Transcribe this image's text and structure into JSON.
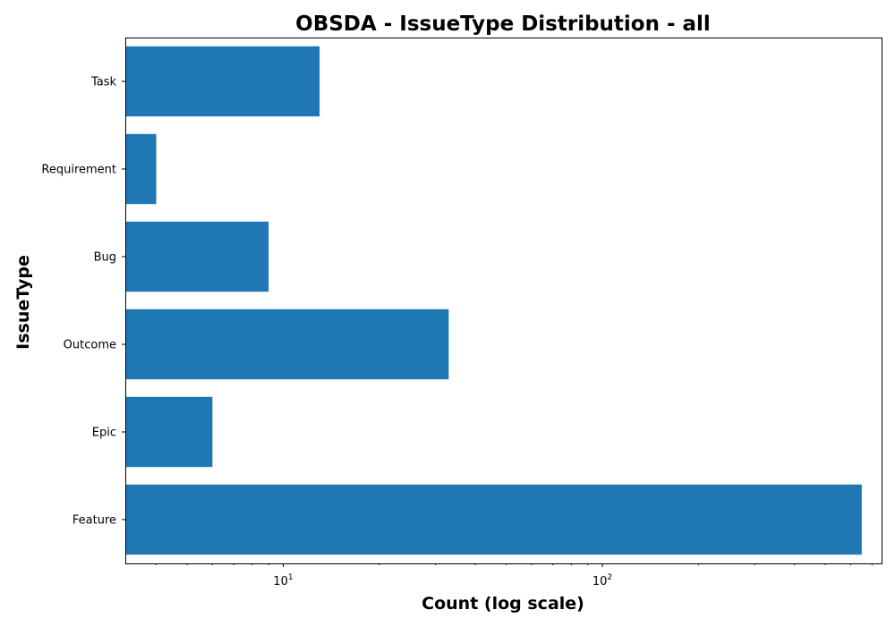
{
  "chart_data": {
    "type": "bar",
    "orientation": "horizontal",
    "title": "OBSDA - IssueType Distribution - all",
    "xlabel": "Count (log scale)",
    "ylabel": "IssueType",
    "x_scale": "log",
    "xlim": [
      3.2,
      750
    ],
    "categories": [
      "Task",
      "Requirement",
      "Bug",
      "Outcome",
      "Epic",
      "Feature"
    ],
    "values": [
      13,
      4,
      9,
      33,
      6,
      650
    ],
    "bar_color": "#1f77b4",
    "x_ticks": [
      {
        "value": 10,
        "base": "10",
        "exponent": "1"
      },
      {
        "value": 100,
        "base": "10",
        "exponent": "2"
      }
    ],
    "grid": false,
    "legend": "none"
  }
}
